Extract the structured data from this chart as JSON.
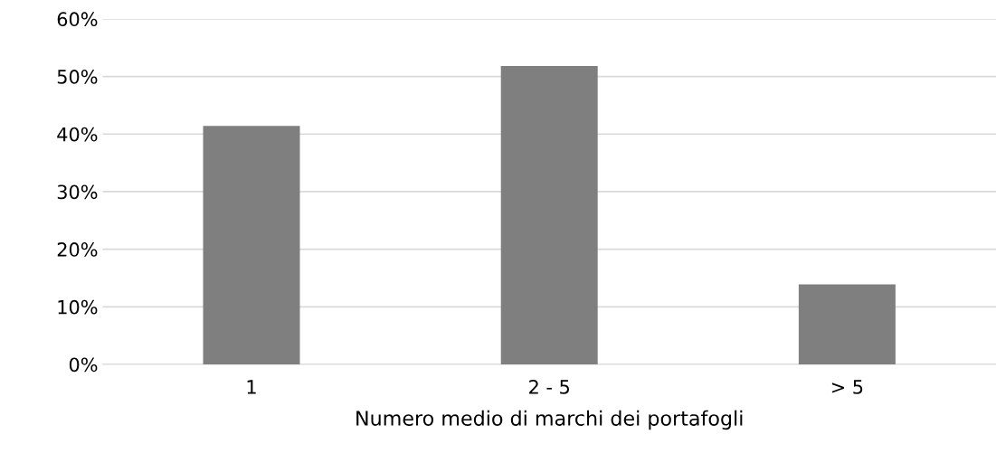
{
  "chart_data": {
    "type": "bar",
    "xlabel": "Numero medio di marchi dei portafogli",
    "categories": [
      "1",
      "2 - 5",
      "> 5"
    ],
    "values": [
      41.4,
      51.8,
      13.9
    ],
    "color": "#7f7f7f",
    "ylim": [
      0,
      60
    ],
    "yticks": [
      {
        "value": 0,
        "label": "0%"
      },
      {
        "value": 10,
        "label": "10%"
      },
      {
        "value": 20,
        "label": "20%"
      },
      {
        "value": 30,
        "label": "30%"
      },
      {
        "value": 40,
        "label": "40%"
      },
      {
        "value": 50,
        "label": "50%"
      },
      {
        "value": 60,
        "label": "60%"
      }
    ],
    "grid": "y"
  }
}
